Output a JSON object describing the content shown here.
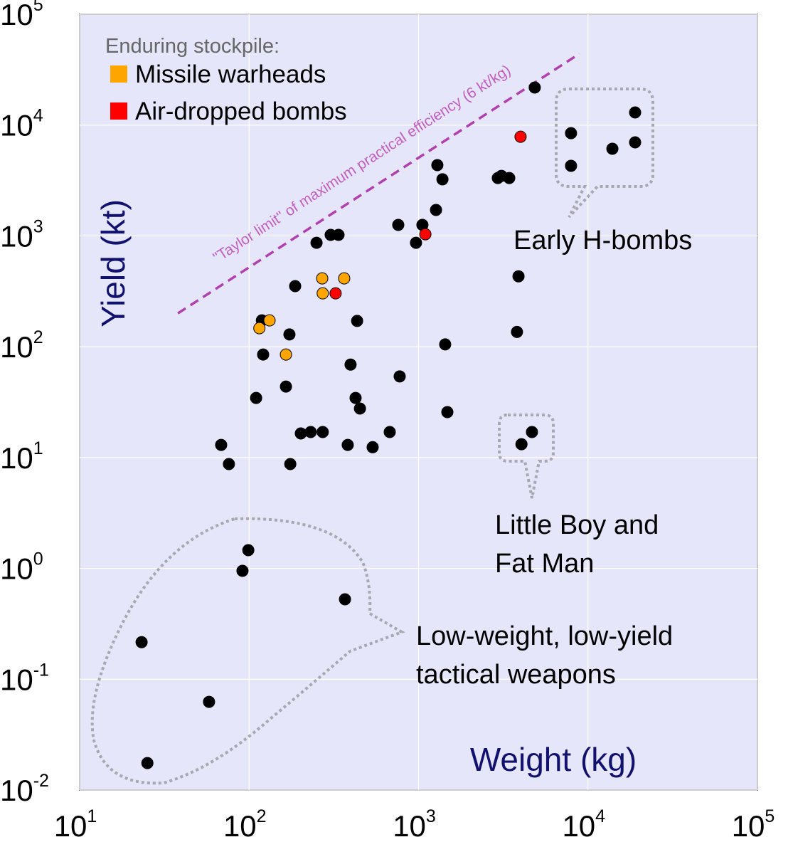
{
  "chart_data": {
    "type": "scatter",
    "x_label": "Weight (kg)",
    "y_label": "Yield (kt)",
    "xscale": "log",
    "yscale": "log",
    "grid": true,
    "legend_title": "Enduring stockpile:",
    "legend_position": "upper left",
    "xlim": [
      10,
      100000
    ],
    "ylim": [
      0.01,
      100000
    ],
    "xticks": [
      {
        "value": 10,
        "label": "10",
        "exponent": "1"
      },
      {
        "value": 100,
        "label": "10",
        "exponent": "2"
      },
      {
        "value": 1000,
        "label": "10",
        "exponent": "3"
      },
      {
        "value": 10000,
        "label": "10",
        "exponent": "4"
      },
      {
        "value": 100000,
        "label": "10",
        "exponent": "5"
      }
    ],
    "yticks": [
      {
        "value": 0.01,
        "label": "10",
        "exponent": "-2"
      },
      {
        "value": 0.1,
        "label": "10",
        "exponent": "-1"
      },
      {
        "value": 1,
        "label": "10",
        "exponent": "0"
      },
      {
        "value": 10,
        "label": "10",
        "exponent": "1"
      },
      {
        "value": 100,
        "label": "10",
        "exponent": "2"
      },
      {
        "value": 1000,
        "label": "10",
        "exponent": "3"
      },
      {
        "value": 10000,
        "label": "10",
        "exponent": "4"
      },
      {
        "value": 100000,
        "label": "10",
        "exponent": "5"
      }
    ],
    "series": [
      {
        "color": "#000000",
        "x": [
          4850,
          18970,
          7940,
          18970,
          13930,
          7940,
          1291,
          1384,
          2937,
          3085,
          3430,
          1268,
          759,
          1054,
          966,
          303,
          337,
          250,
          3890,
          187,
          434,
          119,
          173,
          3810,
          1436,
          121,
          397,
          774,
          165,
          110,
          425,
          451,
          1479,
          4670,
          676,
          202,
          231,
          272,
          4050,
          382,
          536,
          68.4,
          76,
          175,
          98.9,
          91.4,
          368,
          23.2,
          58,
          25.1
        ],
        "values": [
          21800,
          13000,
          8450,
          6980,
          6110,
          4290,
          4350,
          3240,
          3330,
          3480,
          3330,
          1714,
          1256,
          1256,
          867,
          1021,
          1021,
          867,
          432,
          352,
          171,
          173,
          129,
          136,
          105,
          85,
          69,
          54,
          43.7,
          34.5,
          34.5,
          27.7,
          25.7,
          17,
          17,
          16.5,
          17,
          17,
          13.2,
          13,
          12.4,
          13,
          8.73,
          8.73,
          1.46,
          0.95,
          0.526,
          0.216,
          0.0625,
          0.0175
        ]
      },
      {
        "name": "Missile warheads",
        "color": "#ffa500",
        "x": [
          115,
          132,
          270,
          364,
          272,
          165
        ],
        "values": [
          147,
          173,
          414,
          414,
          303,
          85
        ]
      },
      {
        "name": "Air-dropped bombs",
        "color": "#ff0000",
        "x": [
          4000,
          1097,
          324
        ],
        "values": [
          7850,
          1035,
          303
        ]
      }
    ],
    "reference_line": {
      "label": "\"Taylor limit\" of maximum practical efficiency (6 kt/kg)",
      "color": "#b040b0",
      "x": [
        38,
        8900
      ],
      "values": [
        200,
        44000
      ]
    },
    "annotations": [
      {
        "lines": [
          "Early H-bombs"
        ]
      },
      {
        "lines": [
          "Little Boy and",
          "Fat Man"
        ]
      },
      {
        "lines": [
          "Low-weight, low-yield",
          "tactical weapons"
        ]
      }
    ]
  }
}
